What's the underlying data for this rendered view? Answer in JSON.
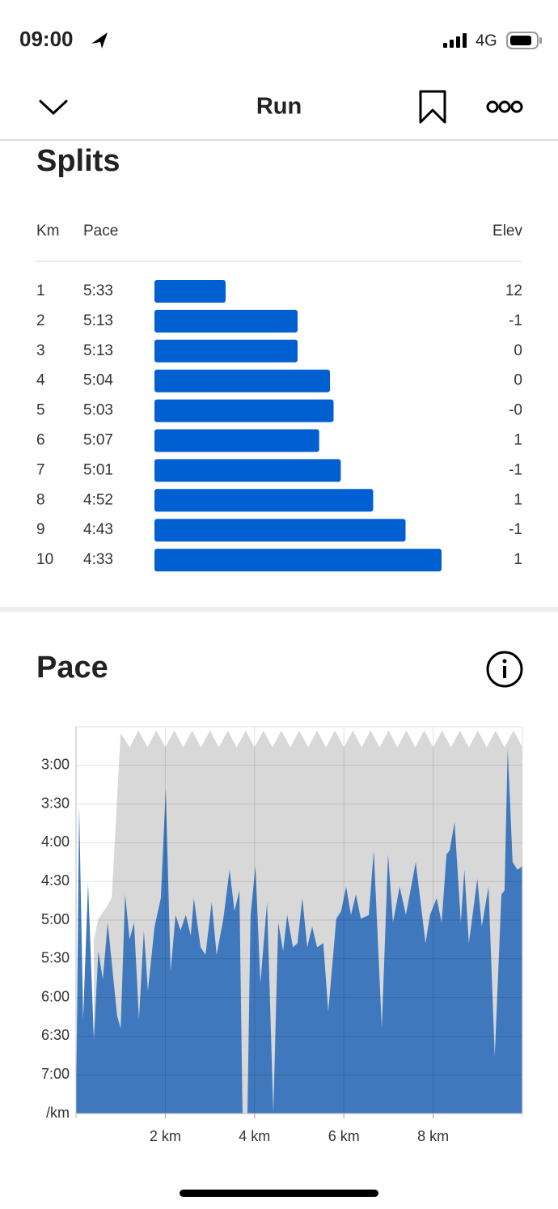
{
  "status_bar": {
    "time": "09:00",
    "network": "4G"
  },
  "nav": {
    "title": "Run"
  },
  "splits": {
    "title": "Splits",
    "headers": {
      "km": "Km",
      "pace": "Pace",
      "elev": "Elev"
    },
    "bar_color": "#005fd1",
    "rows": [
      {
        "km": 1,
        "pace": {
          "value": 333,
          "label": "5:33"
        },
        "elev": "12"
      },
      {
        "km": 2,
        "pace": {
          "value": 313,
          "label": "5:13"
        },
        "elev": "-1"
      },
      {
        "km": 3,
        "pace": {
          "value": 313,
          "label": "5:13"
        },
        "elev": "0"
      },
      {
        "km": 4,
        "pace": {
          "value": 304,
          "label": "5:04"
        },
        "elev": "0"
      },
      {
        "km": 5,
        "pace": {
          "value": 303,
          "label": "5:03"
        },
        "elev": "-0"
      },
      {
        "km": 6,
        "pace": {
          "value": 307,
          "label": "5:07"
        },
        "elev": "1"
      },
      {
        "km": 7,
        "pace": {
          "value": 301,
          "label": "5:01"
        },
        "elev": "-1"
      },
      {
        "km": 8,
        "pace": {
          "value": 292,
          "label": "4:52"
        },
        "elev": "1"
      },
      {
        "km": 9,
        "pace": {
          "value": 283,
          "label": "4:43"
        },
        "elev": "-1"
      },
      {
        "km": 10,
        "pace": {
          "value": 273,
          "label": "4:33"
        },
        "elev": "1"
      }
    ]
  },
  "pace": {
    "title": "Pace",
    "chart_data": {
      "type": "area",
      "xlim": [
        0,
        10
      ],
      "xticks": [
        {
          "value": 2,
          "label": "2 km"
        },
        {
          "value": 4,
          "label": "4 km"
        },
        {
          "value": 6,
          "label": "6 km"
        },
        {
          "value": 8,
          "label": "8 km"
        }
      ],
      "ylim": [
        150,
        450
      ],
      "y_reversed": true,
      "grid": true,
      "yticks": [
        {
          "value": 180,
          "label": "3:00"
        },
        {
          "value": 210,
          "label": "3:30"
        },
        {
          "value": 240,
          "label": "4:00"
        },
        {
          "value": 270,
          "label": "4:30"
        },
        {
          "value": 300,
          "label": "5:00"
        },
        {
          "value": 330,
          "label": "5:30"
        },
        {
          "value": 360,
          "label": "6:00"
        },
        {
          "value": 390,
          "label": "6:30"
        },
        {
          "value": 420,
          "label": "7:00"
        },
        {
          "value": 450,
          "label": "/km"
        }
      ],
      "series": [
        {
          "color": "#d8d8d8",
          "x": [
            0.4,
            0.5,
            0.7,
            0.8,
            1.0,
            1.2,
            1.4,
            1.6,
            1.8,
            2.0,
            2.2,
            2.4,
            2.6,
            2.8,
            3.0,
            3.2,
            3.4,
            3.6,
            3.8,
            4.0,
            4.2,
            4.4,
            4.6,
            4.8,
            5.0,
            5.2,
            5.4,
            5.6,
            5.8,
            6.0,
            6.2,
            6.4,
            6.6,
            6.8,
            7.0,
            7.2,
            7.4,
            7.6,
            7.8,
            8.0,
            8.2,
            8.4,
            8.6,
            8.8,
            9.0,
            9.2,
            9.4,
            9.6,
            9.8,
            10.0
          ],
          "values": [
            315,
            299,
            289,
            283,
            155,
            166,
            153,
            166,
            153,
            166,
            153,
            166,
            153,
            166,
            153,
            166,
            153,
            166,
            153,
            166,
            153,
            166,
            153,
            166,
            153,
            166,
            153,
            166,
            153,
            166,
            153,
            166,
            153,
            166,
            153,
            166,
            153,
            166,
            153,
            166,
            153,
            166,
            153,
            166,
            153,
            166,
            153,
            166,
            153,
            166
          ]
        },
        {
          "color": "#3f78bd",
          "x": [
            0,
            0.07,
            0.16,
            0.27,
            0.4,
            0.5,
            0.6,
            0.71,
            0.92,
            1.0,
            1.1,
            1.2,
            1.3,
            1.41,
            1.52,
            1.61,
            1.76,
            1.9,
            2.01,
            2.12,
            2.23,
            2.34,
            2.46,
            2.57,
            2.64,
            2.79,
            2.9,
            3.04,
            3.15,
            3.3,
            3.44,
            3.55,
            3.66,
            3.73,
            3.84,
            3.91,
            4.02,
            4.13,
            4.28,
            4.42,
            4.53,
            4.64,
            4.73,
            4.86,
            4.96,
            5.07,
            5.18,
            5.29,
            5.4,
            5.54,
            5.65,
            5.83,
            5.94,
            6.05,
            6.16,
            6.27,
            6.38,
            6.56,
            6.67,
            6.85,
            6.99,
            7.1,
            7.25,
            7.39,
            7.61,
            7.83,
            7.93,
            8.08,
            8.19,
            8.3,
            8.37,
            8.48,
            8.62,
            8.7,
            8.8,
            8.99,
            9.09,
            9.24,
            9.38,
            9.53,
            9.6,
            9.67,
            9.78,
            9.89,
            10.0
          ],
          "values": [
            450,
            211,
            377,
            271,
            393,
            324,
            346,
            302,
            374,
            384,
            280,
            315,
            302,
            377,
            308,
            355,
            305,
            283,
            198,
            340,
            296,
            308,
            296,
            312,
            283,
            321,
            327,
            286,
            327,
            299,
            261,
            293,
            277,
            450,
            450,
            296,
            258,
            349,
            286,
            450,
            302,
            324,
            296,
            321,
            318,
            283,
            321,
            305,
            321,
            318,
            371,
            299,
            293,
            274,
            296,
            280,
            299,
            296,
            246,
            384,
            249,
            302,
            274,
            296,
            255,
            318,
            296,
            283,
            302,
            249,
            246,
            224,
            302,
            261,
            318,
            268,
            305,
            274,
            406,
            280,
            277,
            167,
            255,
            261,
            258
          ]
        }
      ]
    }
  }
}
